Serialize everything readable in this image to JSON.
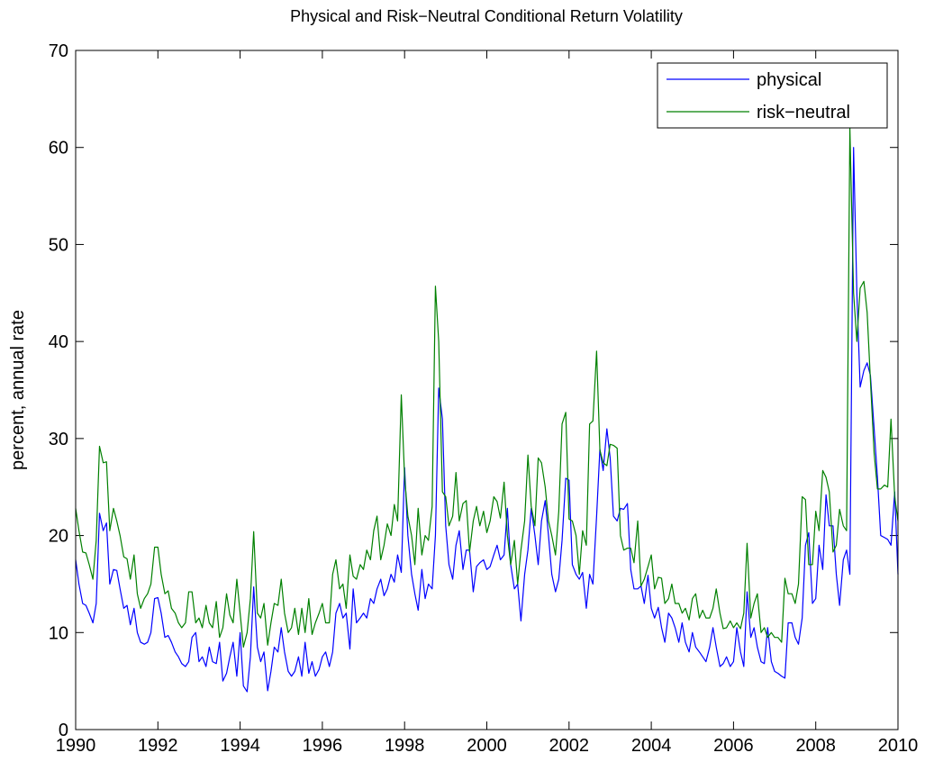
{
  "chart_data": {
    "type": "line",
    "title": "Physical and Risk−Neutral Conditional Return Volatility",
    "y_label": "percent, annual rate",
    "legend": "upper right",
    "grid": false,
    "xlim": [
      1990,
      2010
    ],
    "xticks": [
      1990,
      1992,
      1994,
      1996,
      1998,
      2000,
      2002,
      2004,
      2006,
      2008,
      2010
    ],
    "ylim": [
      0,
      70
    ],
    "yticks": [
      0,
      10,
      20,
      30,
      40,
      50,
      60,
      70
    ],
    "x": [
      1990,
      1990.08,
      1990.17,
      1990.25,
      1990.33,
      1990.42,
      1990.5,
      1990.58,
      1990.67,
      1990.75,
      1990.83,
      1990.92,
      1991,
      1991.08,
      1991.17,
      1991.25,
      1991.33,
      1991.42,
      1991.5,
      1991.58,
      1991.67,
      1991.75,
      1991.83,
      1991.92,
      1992,
      1992.08,
      1992.17,
      1992.25,
      1992.33,
      1992.42,
      1992.5,
      1992.58,
      1992.67,
      1992.75,
      1992.83,
      1992.92,
      1993,
      1993.08,
      1993.17,
      1993.25,
      1993.33,
      1993.42,
      1993.5,
      1993.58,
      1993.67,
      1993.75,
      1993.83,
      1993.92,
      1994,
      1994.08,
      1994.17,
      1994.25,
      1994.33,
      1994.42,
      1994.5,
      1994.58,
      1994.67,
      1994.75,
      1994.83,
      1994.92,
      1995,
      1995.08,
      1995.17,
      1995.25,
      1995.33,
      1995.42,
      1995.5,
      1995.58,
      1995.67,
      1995.75,
      1995.83,
      1995.92,
      1996,
      1996.08,
      1996.17,
      1996.25,
      1996.33,
      1996.42,
      1996.5,
      1996.58,
      1996.67,
      1996.75,
      1996.83,
      1996.92,
      1997,
      1997.08,
      1997.17,
      1997.25,
      1997.33,
      1997.42,
      1997.5,
      1997.58,
      1997.67,
      1997.75,
      1997.83,
      1997.92,
      1998,
      1998.08,
      1998.17,
      1998.25,
      1998.33,
      1998.42,
      1998.5,
      1998.58,
      1998.67,
      1998.75,
      1998.83,
      1998.92,
      1999,
      1999.08,
      1999.17,
      1999.25,
      1999.33,
      1999.42,
      1999.5,
      1999.58,
      1999.67,
      1999.75,
      1999.83,
      1999.92,
      2000,
      2000.08,
      2000.17,
      2000.25,
      2000.33,
      2000.42,
      2000.5,
      2000.58,
      2000.67,
      2000.75,
      2000.83,
      2000.92,
      2001,
      2001.08,
      2001.17,
      2001.25,
      2001.33,
      2001.42,
      2001.5,
      2001.58,
      2001.67,
      2001.75,
      2001.83,
      2001.92,
      2002,
      2002.08,
      2002.17,
      2002.25,
      2002.33,
      2002.42,
      2002.5,
      2002.58,
      2002.67,
      2002.75,
      2002.83,
      2002.92,
      2003,
      2003.08,
      2003.17,
      2003.25,
      2003.33,
      2003.42,
      2003.5,
      2003.58,
      2003.67,
      2003.75,
      2003.83,
      2003.92,
      2004,
      2004.08,
      2004.17,
      2004.25,
      2004.33,
      2004.42,
      2004.5,
      2004.58,
      2004.67,
      2004.75,
      2004.83,
      2004.92,
      2005,
      2005.08,
      2005.17,
      2005.25,
      2005.33,
      2005.42,
      2005.5,
      2005.58,
      2005.67,
      2005.75,
      2005.83,
      2005.92,
      2006,
      2006.08,
      2006.17,
      2006.25,
      2006.33,
      2006.42,
      2006.5,
      2006.58,
      2006.67,
      2006.75,
      2006.83,
      2006.92,
      2007,
      2007.08,
      2007.17,
      2007.25,
      2007.33,
      2007.42,
      2007.5,
      2007.58,
      2007.67,
      2007.75,
      2007.83,
      2007.92,
      2008,
      2008.08,
      2008.17,
      2008.25,
      2008.33,
      2008.42,
      2008.5,
      2008.58,
      2008.67,
      2008.75,
      2008.83,
      2008.92,
      2009,
      2009.08,
      2009.17,
      2009.25,
      2009.33,
      2009.42,
      2009.5,
      2009.58,
      2009.67,
      2009.75,
      2009.83,
      2009.92,
      2010
    ],
    "series": [
      {
        "name": "physical",
        "color": "#0000ff",
        "values": [
          17.5,
          15,
          13,
          12.8,
          12,
          11,
          13,
          22.3,
          20.5,
          21.3,
          15,
          16.5,
          16.4,
          14.5,
          12.5,
          12.8,
          10.8,
          12.5,
          10,
          9,
          8.8,
          9,
          10,
          13.5,
          13.6,
          12,
          9.5,
          9.7,
          9,
          8,
          7.5,
          6.8,
          6.5,
          7,
          9.5,
          10,
          7,
          7.5,
          6.5,
          8.5,
          7,
          6.8,
          9,
          5,
          5.8,
          7.5,
          9,
          5.5,
          10,
          4.5,
          3.9,
          7.5,
          14.7,
          8.5,
          7,
          8,
          4,
          6,
          8.5,
          8,
          10.5,
          8,
          6,
          5.5,
          6,
          7.5,
          5.5,
          9,
          5.8,
          7,
          5.5,
          6.2,
          7.5,
          8,
          6.5,
          8,
          12,
          13,
          11.5,
          12,
          8.3,
          14.5,
          11,
          11.5,
          12,
          11.5,
          13.5,
          13,
          14.5,
          15.5,
          13.8,
          14.5,
          16,
          15.2,
          18,
          16.2,
          27,
          20,
          16,
          14,
          12.3,
          16.5,
          13.5,
          15,
          14.5,
          20,
          35.2,
          32,
          21,
          17,
          15.5,
          19,
          20.5,
          16.5,
          18.5,
          18.5,
          14.2,
          16.8,
          17.2,
          17.5,
          16.5,
          16.8,
          18,
          19,
          17.5,
          18,
          22.8,
          17,
          14.5,
          15,
          11.2,
          16,
          18.5,
          22.8,
          20,
          17,
          21.5,
          23.6,
          20,
          16,
          14.2,
          15.5,
          19.5,
          25.9,
          25.7,
          17,
          16,
          15.5,
          16.2,
          12.5,
          16,
          15,
          22,
          28.9,
          26.7,
          31,
          28,
          22,
          21.5,
          22.8,
          22.7,
          23.3,
          16.5,
          14.5,
          14.5,
          14.8,
          13,
          15.9,
          12.5,
          11.5,
          12.6,
          10.5,
          9,
          12,
          11.5,
          10.5,
          9,
          11,
          9,
          8,
          10,
          8.5,
          8,
          7.5,
          7,
          8.5,
          10.5,
          8.5,
          6.5,
          6.8,
          7.5,
          6.5,
          7,
          10.5,
          8,
          6.5,
          14.2,
          9.5,
          10.5,
          8.5,
          7,
          6.8,
          10.5,
          7,
          6,
          5.8,
          5.5,
          5.3,
          11,
          11,
          9.5,
          8.8,
          11.5,
          19,
          20.3,
          13,
          13.5,
          19,
          16.5,
          24.2,
          21,
          21,
          16,
          12.8,
          17.5,
          18.5,
          16,
          60,
          45,
          35.3,
          37,
          37.8,
          36.5,
          31,
          26,
          20,
          19.8,
          19.6,
          19,
          24.5,
          16
        ]
      },
      {
        "name": "risk−neutral",
        "color": "#008000",
        "values": [
          22.8,
          20.5,
          18.3,
          18.2,
          17,
          15.5,
          19.5,
          29.2,
          27.5,
          27.6,
          20.5,
          22.8,
          21.5,
          20,
          17.8,
          17.6,
          15.5,
          18,
          14,
          12.5,
          13.5,
          14,
          15,
          18.8,
          18.8,
          16,
          14,
          14.3,
          12.5,
          12,
          11,
          10.5,
          11,
          14.2,
          14.2,
          11,
          11.5,
          10.5,
          12.8,
          11,
          10.5,
          13.2,
          9.5,
          10.5,
          14,
          11.8,
          11,
          15.5,
          12,
          8.5,
          10,
          13.5,
          20.4,
          12,
          11.5,
          13,
          8.7,
          11,
          13,
          12.8,
          15.5,
          12,
          10,
          10.5,
          12.5,
          9.8,
          12.5,
          10,
          13.5,
          9.8,
          11,
          12,
          13,
          11,
          11,
          16,
          17.5,
          14.5,
          15,
          12.5,
          18,
          15.8,
          15.5,
          17,
          16.5,
          18.5,
          17.5,
          20.5,
          22,
          17.5,
          19,
          21.2,
          20,
          23.2,
          21.5,
          34.5,
          26,
          22,
          20,
          17,
          22.8,
          18,
          20,
          19.5,
          23,
          45.7,
          40,
          24.5,
          24,
          21,
          22,
          26.5,
          21.5,
          23.3,
          23.6,
          18.3,
          21.5,
          23,
          21,
          22.5,
          20.3,
          21.5,
          24,
          23.5,
          21.8,
          25.5,
          20,
          17,
          19.5,
          15,
          18.5,
          21.5,
          28.3,
          23,
          21,
          28,
          27.5,
          25,
          21.5,
          20,
          18,
          22.5,
          31.5,
          32.7,
          21.7,
          21.5,
          20,
          16,
          20.5,
          19,
          31.5,
          31.8,
          39,
          28.8,
          27.5,
          27.2,
          29.4,
          29.3,
          29,
          20,
          18.5,
          18.7,
          18.7,
          17.2,
          21.5,
          14.8,
          15.5,
          16.8,
          18,
          14.5,
          15.7,
          15.6,
          13,
          13.5,
          15,
          13,
          13,
          12,
          12.5,
          11.3,
          13.5,
          14,
          11.5,
          12.3,
          11.5,
          11.5,
          12.5,
          14.5,
          12,
          10.4,
          10.5,
          11.2,
          10.5,
          11,
          10.4,
          12,
          19.2,
          11.5,
          13,
          14,
          10,
          10.5,
          9.5,
          10,
          9.5,
          9.5,
          9,
          15.6,
          14,
          14,
          13,
          15,
          24,
          23.7,
          17,
          17,
          22.5,
          20.5,
          26.7,
          26,
          24.5,
          18.3,
          19,
          22.7,
          21,
          20.5,
          62,
          45,
          40,
          45.5,
          46.2,
          43,
          36,
          28.5,
          24.8,
          24.8,
          25.2,
          25,
          32,
          24,
          21.5
        ]
      }
    ]
  }
}
